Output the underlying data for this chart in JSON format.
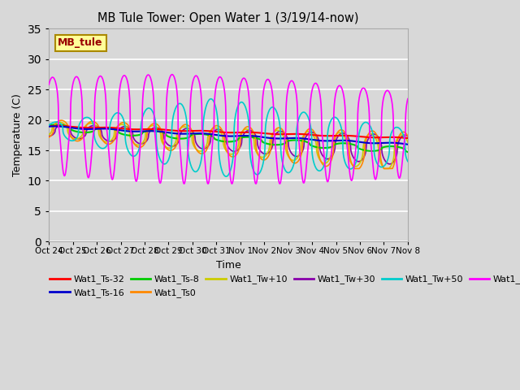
{
  "title": "MB Tule Tower: Open Water 1 (3/19/14-now)",
  "xlabel": "Time",
  "ylabel": "Temperature (C)",
  "ylim": [
    0,
    35
  ],
  "yticks": [
    0,
    5,
    10,
    15,
    20,
    25,
    30,
    35
  ],
  "background_color": "#d8d8d8",
  "plot_bg_color": "#d8d8d8",
  "legend_label": "MB_tule",
  "series_colors": {
    "Wat1_Ts-32": "#ff0000",
    "Wat1_Ts-16": "#0000cc",
    "Wat1_Ts-8": "#00cc00",
    "Wat1_Ts0": "#ff8800",
    "Wat1_Tw+10": "#cccc00",
    "Wat1_Tw+30": "#8800aa",
    "Wat1_Tw+50": "#00cccc",
    "Wat1_Tw100": "#ff00ff"
  },
  "xtick_labels": [
    "Oct 24",
    "Oct 25",
    "Oct 26",
    "Oct 27",
    "Oct 28",
    "Oct 29",
    "Oct 30",
    "Oct 31",
    "Nov 1",
    "Nov 2",
    "Nov 3",
    "Nov 4",
    "Nov 5",
    "Nov 6",
    "Nov 7",
    "Nov 8"
  ]
}
